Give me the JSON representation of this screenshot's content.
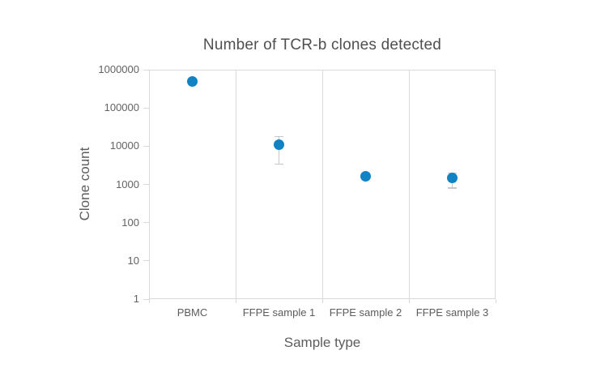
{
  "chart_data": {
    "type": "scatter",
    "title": "Number of TCR-b clones detected",
    "xlabel": "Sample type",
    "ylabel": "Clone count",
    "y_scale": "log",
    "ylim": [
      1,
      1000000
    ],
    "y_ticks": [
      1000000,
      100000,
      10000,
      1000,
      100,
      10,
      1
    ],
    "categories": [
      "PBMC",
      "FFPE sample 1",
      "FFPE sample 2",
      "FFPE sample 3"
    ],
    "series": [
      {
        "name": "Clone count",
        "values": [
          500000,
          11000,
          1600,
          1450
        ],
        "error_low": [
          null,
          3400,
          null,
          800
        ],
        "error_high": [
          null,
          18000,
          null,
          2000
        ]
      }
    ],
    "grid": "vertical-separators-only",
    "legend": "none"
  },
  "colors": {
    "marker": "#1182c4",
    "error_bar": "#c8c8c8",
    "axis_line": "#d9d9d9",
    "text": "#5c5c5c"
  }
}
